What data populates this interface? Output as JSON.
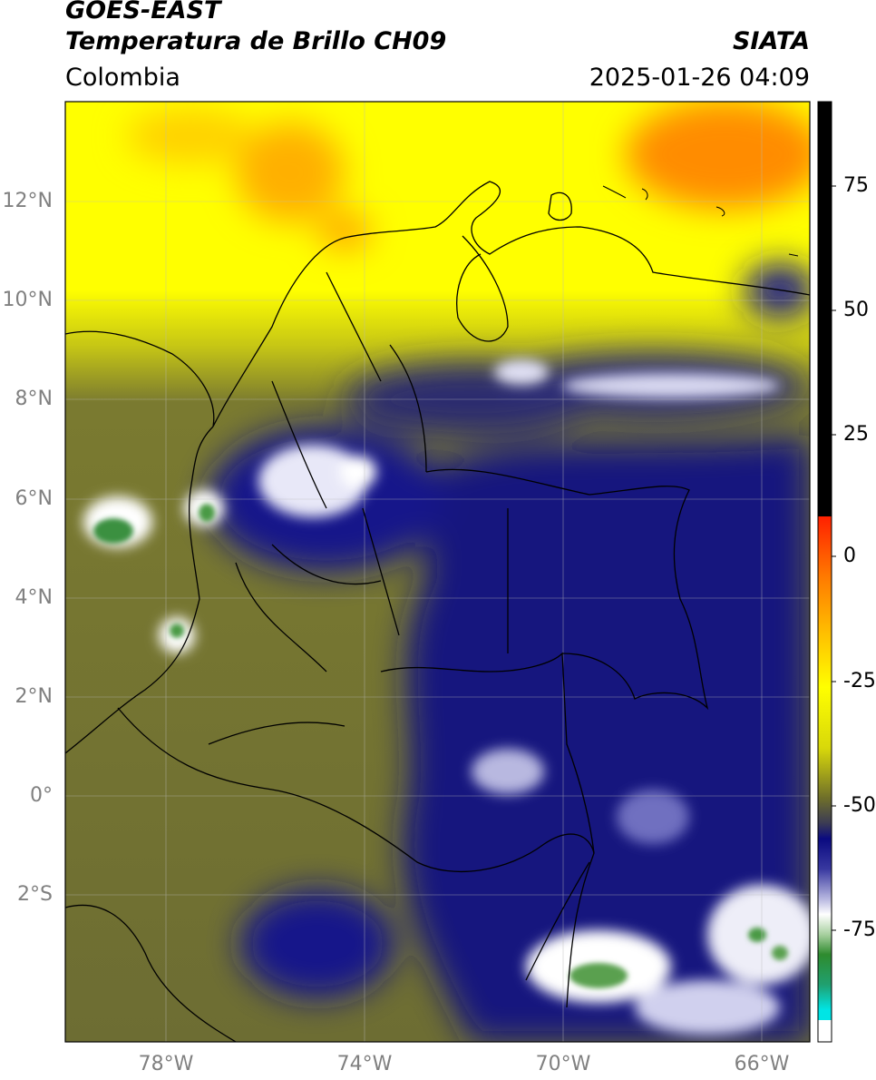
{
  "header": {
    "satellite": "GOES-EAST",
    "product": "Temperatura de Brillo CH09",
    "region": "Colombia",
    "agency": "SIATA",
    "datetime": "2025-01-26 04:09"
  },
  "map": {
    "type": "brightness_temperature_map",
    "lon_range": [
      -80,
      -65
    ],
    "lat_range": [
      -5,
      14
    ],
    "grid": true,
    "lat_labels": [
      "12°N",
      "10°N",
      "8°N",
      "6°N",
      "4°N",
      "2°N",
      "0°",
      "2°S"
    ],
    "lon_labels": [
      "78°W",
      "74°W",
      "70°W",
      "66°W"
    ]
  },
  "colorbar": {
    "ticks": [
      "75",
      "50",
      "25",
      "0",
      "-25",
      "-50",
      "-75"
    ],
    "range": [
      -92,
      90
    ],
    "colors": {
      "hot": "#000000",
      "red": "#ff2000",
      "orange": "#ff8c00",
      "yellow": "#ffff00",
      "olive": "#6e6e2a",
      "navy": "#10107a",
      "white": "#ffffff",
      "green": "#2e8b2e",
      "cyan": "#00e5e5"
    }
  }
}
